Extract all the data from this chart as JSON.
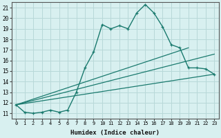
{
  "title": "",
  "xlabel": "Humidex (Indice chaleur)",
  "ylabel": "",
  "background_color": "#d8f0f0",
  "grid_color": "#b8d8d8",
  "line_color": "#1a7a6e",
  "xlim": [
    -0.5,
    23.5
  ],
  "ylim": [
    10.5,
    21.5
  ],
  "xticks": [
    0,
    1,
    2,
    3,
    4,
    5,
    6,
    7,
    8,
    9,
    10,
    11,
    12,
    13,
    14,
    15,
    16,
    17,
    18,
    19,
    20,
    21,
    22,
    23
  ],
  "yticks": [
    11,
    12,
    13,
    14,
    15,
    16,
    17,
    18,
    19,
    20,
    21
  ],
  "line1_x": [
    0,
    1,
    2,
    3,
    4,
    5,
    6,
    7,
    8,
    9,
    10,
    11,
    12,
    13,
    14,
    15,
    16,
    17,
    18,
    19,
    20,
    21,
    22,
    23
  ],
  "line1_y": [
    11.8,
    11.1,
    11.0,
    11.1,
    11.3,
    11.1,
    11.3,
    13.0,
    15.3,
    16.8,
    19.4,
    19.0,
    19.3,
    19.0,
    20.5,
    21.3,
    20.5,
    19.2,
    17.5,
    17.2,
    15.3,
    15.3,
    15.2,
    14.7
  ],
  "line2_x": [
    0,
    20
  ],
  "line2_y": [
    11.8,
    17.2
  ],
  "line3_x": [
    0,
    23
  ],
  "line3_y": [
    11.8,
    16.6
  ],
  "line4_x": [
    0,
    23
  ],
  "line4_y": [
    11.8,
    14.7
  ]
}
